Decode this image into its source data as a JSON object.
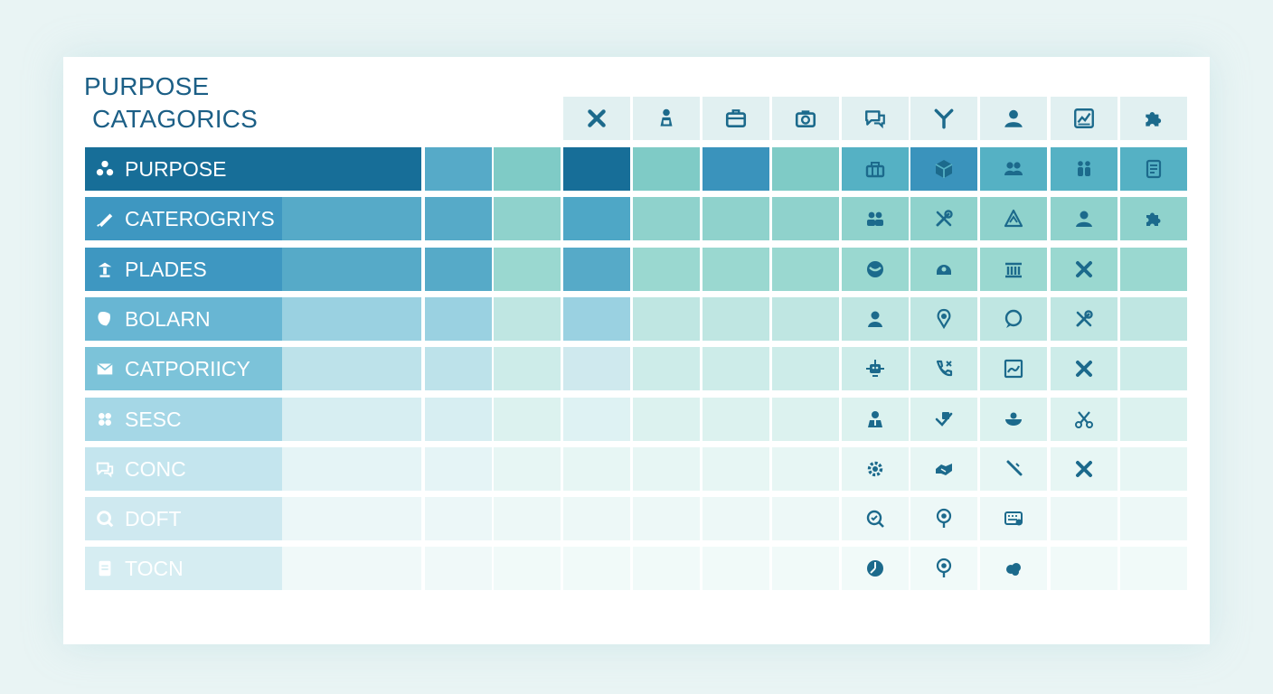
{
  "title": {
    "line1": "PURPOSE",
    "line2": "CATAGORICS"
  },
  "header_icons": [
    "cross-icon",
    "person-bag-icon",
    "briefcase-icon",
    "camera-icon",
    "chat-icon",
    "antenna-icon",
    "user-icon",
    "chart-icon",
    "puzzle-icon"
  ],
  "rows": [
    {
      "label": "PURPOSE",
      "icon": "dots-icon",
      "fills": [
        "#176e98",
        "#56aac8",
        "#7fcbc6",
        "#176e98",
        "#7fcbc6",
        "#3a93bc",
        "#7fcbc6",
        "#55b1c4",
        "#3a93bc",
        "#55b1c4",
        "#55b1c4",
        "#55b1c4"
      ],
      "icons": [
        "tool-box-icon",
        "cube-icon",
        "people-icon",
        "figures-icon",
        "document-icon"
      ]
    },
    {
      "label": "CATEROGRIYS",
      "icon": "pen-icon",
      "fills": [
        "#3e97c1",
        "#56aac8",
        "#8fd2cc",
        "#4ea7c6",
        "#8fd2cc",
        "#8fd2cc",
        "#8fd2cc",
        "#8fd2cc",
        "#8fd2cc",
        "#8fd2cc",
        "#8fd2cc",
        "#8fd2cc"
      ],
      "icons": [
        "group-icon",
        "tools-icon",
        "warning-icon",
        "user-icon",
        "puzzle-icon"
      ]
    },
    {
      "label": "PLADES",
      "icon": "lamp-icon",
      "fills": [
        "#3e97c1",
        "#56aac8",
        "#9ad8d0",
        "#56aac8",
        "#9ad8d0",
        "#9ad8d0",
        "#9ad8d0",
        "#9ad8d0",
        "#9ad8d0",
        "#9ad8d0",
        "#9ad8d0",
        "#9ad8d0"
      ],
      "icons": [
        "globe-icon",
        "helmet-icon",
        "bank-icon",
        "cross-icon",
        ""
      ]
    },
    {
      "label": "BOLARN",
      "icon": "shield-icon",
      "fills": [
        "#68b6d3",
        "#9ad1e1",
        "#bfe6e2",
        "#9ad1e1",
        "#bfe6e2",
        "#bfe6e2",
        "#bfe6e2",
        "#bfe6e2",
        "#bfe6e2",
        "#bfe6e2",
        "#bfe6e2",
        "#bfe6e2"
      ],
      "icons": [
        "person-icon",
        "location-icon",
        "bubble-icon",
        "tools-icon",
        ""
      ]
    },
    {
      "label": "CATPORIICY",
      "icon": "mail-icon",
      "fills": [
        "#7cc3d9",
        "#bde2ea",
        "#cdece9",
        "#cfe9ee",
        "#cdece9",
        "#cdece9",
        "#cdece9",
        "#cdece9",
        "#cdece9",
        "#cdece9",
        "#cdece9",
        "#cdece9"
      ],
      "icons": [
        "robot-icon",
        "phone-icon",
        "image-icon",
        "cross-icon",
        ""
      ]
    },
    {
      "label": "SESC",
      "icon": "flower-icon",
      "fills": [
        "#a5d7e6",
        "#d7eef2",
        "#dcf2ef",
        "#def2f3",
        "#dcf2ef",
        "#dcf2ef",
        "#dcf2ef",
        "#dcf2ef",
        "#dcf2ef",
        "#dcf2ef",
        "#dcf2ef",
        "#dcf2ef"
      ],
      "icons": [
        "doctor-icon",
        "edit-icon",
        "bowl-icon",
        "scissors-icon",
        ""
      ]
    },
    {
      "label": "CONC",
      "icon": "chat-icon",
      "fills": [
        "#c4e5ee",
        "#e5f4f6",
        "#e7f6f4",
        "#e7f6f4",
        "#e7f6f4",
        "#e7f6f4",
        "#e7f6f4",
        "#e7f6f4",
        "#e7f6f4",
        "#e7f6f4",
        "#e7f6f4",
        "#e7f6f4"
      ],
      "icons": [
        "gear-icon",
        "handshake-icon",
        "wand-icon",
        "cross-icon",
        ""
      ]
    },
    {
      "label": "DOFT",
      "icon": "search-icon",
      "fills": [
        "#cfe9f0",
        "#ecf7f8",
        "#edf8f7",
        "#edf8f7",
        "#edf8f7",
        "#edf8f7",
        "#edf8f7",
        "#edf8f7",
        "#edf8f7",
        "#edf8f7",
        "#edf8f7",
        "#edf8f7"
      ],
      "icons": [
        "search-check-icon",
        "pin-icon",
        "keyboard-icon",
        "",
        ""
      ]
    },
    {
      "label": "TOCN",
      "icon": "list-icon",
      "fills": [
        "#d6edf2",
        "#f0f9f9",
        "#f1faf9",
        "#f1faf9",
        "#f1faf9",
        "#f1faf9",
        "#f1faf9",
        "#f1faf9",
        "#f1faf9",
        "#f1faf9",
        "#f1faf9",
        "#f1faf9"
      ],
      "icons": [
        "clock-icon",
        "pin-icon",
        "cloud-icon",
        "",
        ""
      ]
    }
  ],
  "colors": {
    "title": "#1c5f86",
    "icon": "#1c6a8c",
    "header_bg": "#e1f0f1",
    "panel": "#ffffff",
    "page_bg": "#e9f4f4"
  }
}
